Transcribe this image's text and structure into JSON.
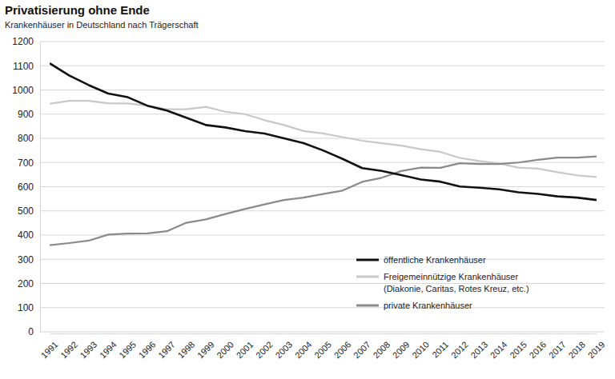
{
  "chart_data": {
    "type": "line",
    "title": "Privatisierung ohne Ende",
    "subtitle": "Krankenhäuser in Deutschland nach Trägerschaft",
    "x": [
      1991,
      1992,
      1993,
      1994,
      1995,
      1996,
      1997,
      1998,
      1999,
      2000,
      2001,
      2002,
      2003,
      2004,
      2005,
      2006,
      2007,
      2008,
      2009,
      2010,
      2011,
      2012,
      2013,
      2014,
      2015,
      2016,
      2017,
      2018,
      2019
    ],
    "xlim": [
      1991,
      2019
    ],
    "xticks": [
      1991,
      1992,
      1993,
      1994,
      1995,
      1996,
      1997,
      1998,
      1999,
      2000,
      2001,
      2002,
      2003,
      2004,
      2005,
      2006,
      2007,
      2008,
      2009,
      2010,
      2011,
      2012,
      2013,
      2014,
      2015,
      2016,
      2017,
      2018,
      2019
    ],
    "ylim": [
      0,
      1200
    ],
    "yticks": [
      0,
      100,
      200,
      300,
      400,
      500,
      600,
      700,
      800,
      900,
      1000,
      1100,
      1200
    ],
    "grid": true,
    "legend": "bottom-right",
    "series": [
      {
        "name": "öffentliche Krankenhäuser",
        "color": "#111111",
        "values": [
          1110,
          1060,
          1020,
          985,
          970,
          935,
          915,
          885,
          855,
          845,
          830,
          820,
          800,
          780,
          750,
          715,
          677,
          665,
          648,
          630,
          621,
          601,
          596,
          589,
          577,
          570,
          560,
          555,
          545
        ]
      },
      {
        "name": "Freigemeinnützige Krankenhäuser (Diakonie, Caritas, Rotes Kreuz, etc.)",
        "color": "#c8c8c8",
        "values": [
          943,
          955,
          955,
          945,
          944,
          935,
          920,
          920,
          930,
          910,
          900,
          875,
          855,
          830,
          820,
          805,
          790,
          780,
          770,
          755,
          744,
          719,
          706,
          696,
          679,
          675,
          660,
          647,
          640
        ]
      },
      {
        "name": "private Krankenhäuser",
        "color": "#8a8a8a",
        "values": [
          358,
          367,
          377,
          402,
          406,
          407,
          416,
          451,
          465,
          487,
          508,
          527,
          545,
          555,
          570,
          584,
          620,
          637,
          665,
          679,
          678,
          697,
          694,
          694,
          700,
          711,
          720,
          720,
          725
        ]
      }
    ]
  }
}
